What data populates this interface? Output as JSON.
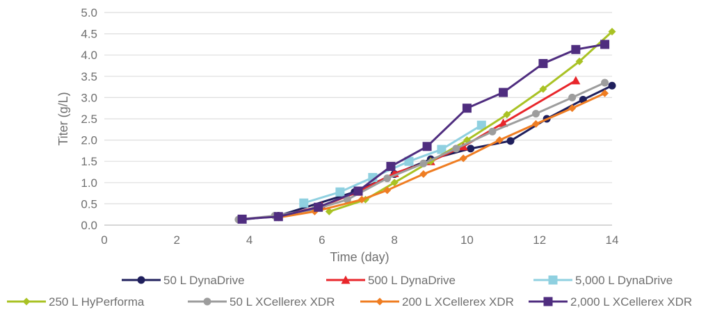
{
  "chart_data": {
    "type": "line",
    "title": "",
    "xlabel": "Time (day)",
    "ylabel": "Titer (g/L)",
    "xlim": [
      0,
      14
    ],
    "ylim": [
      0,
      5.0
    ],
    "xticks": [
      "0",
      "2",
      "4",
      "6",
      "8",
      "10",
      "12",
      "14"
    ],
    "yticks": [
      "0.0",
      "0.5",
      "1.0",
      "1.5",
      "2.0",
      "2.5",
      "3.0",
      "3.5",
      "4.0",
      "4.5",
      "5.0"
    ],
    "grid": "horizontal",
    "legend_placement": "bottom",
    "series": [
      {
        "name": "50 L DynaDrive",
        "color": "#1f1f5c",
        "marker": "circle",
        "points": [
          [
            3.8,
            0.13
          ],
          [
            4.8,
            0.22
          ],
          [
            6.9,
            0.78
          ],
          [
            8.0,
            1.2
          ],
          [
            9.0,
            1.55
          ],
          [
            10.1,
            1.8
          ],
          [
            11.2,
            1.98
          ],
          [
            12.2,
            2.5
          ],
          [
            13.2,
            2.95
          ],
          [
            14.0,
            3.28
          ]
        ]
      },
      {
        "name": "500 L DynaDrive",
        "color": "#e8262b",
        "marker": "triangle",
        "points": [
          [
            4.8,
            0.2
          ],
          [
            6.0,
            0.45
          ],
          [
            7.0,
            0.78
          ],
          [
            8.0,
            1.22
          ],
          [
            9.0,
            1.5
          ],
          [
            9.9,
            1.85
          ],
          [
            11.0,
            2.4
          ],
          [
            13.0,
            3.4
          ]
        ]
      },
      {
        "name": "5,000 L DynaDrive",
        "color": "#8fd0e0",
        "marker": "square",
        "points": [
          [
            5.5,
            0.52
          ],
          [
            6.5,
            0.78
          ],
          [
            7.4,
            1.12
          ],
          [
            8.4,
            1.5
          ],
          [
            9.3,
            1.78
          ],
          [
            10.4,
            2.35
          ]
        ]
      },
      {
        "name": "250 L HyPerforma",
        "color": "#a9c224",
        "marker": "diamond",
        "points": [
          [
            6.2,
            0.32
          ],
          [
            7.2,
            0.6
          ],
          [
            8.0,
            1.0
          ],
          [
            9.0,
            1.5
          ],
          [
            10.0,
            2.0
          ],
          [
            11.1,
            2.6
          ],
          [
            12.1,
            3.2
          ],
          [
            13.1,
            3.85
          ],
          [
            14.0,
            4.55
          ]
        ]
      },
      {
        "name": "50 L XCellerex XDR",
        "color": "#9d9d9d",
        "marker": "circle",
        "points": [
          [
            3.7,
            0.13
          ],
          [
            4.7,
            0.22
          ],
          [
            5.8,
            0.37
          ],
          [
            6.7,
            0.6
          ],
          [
            7.8,
            1.1
          ],
          [
            8.8,
            1.45
          ],
          [
            9.7,
            1.8
          ],
          [
            10.7,
            2.2
          ],
          [
            11.9,
            2.62
          ],
          [
            12.9,
            3.0
          ],
          [
            13.8,
            3.35
          ]
        ]
      },
      {
        "name": "200 L XCellerex XDR",
        "color": "#ef7d22",
        "marker": "diamond",
        "points": [
          [
            4.8,
            0.18
          ],
          [
            5.8,
            0.32
          ],
          [
            7.1,
            0.6
          ],
          [
            7.8,
            0.82
          ],
          [
            8.8,
            1.2
          ],
          [
            9.9,
            1.57
          ],
          [
            10.9,
            2.0
          ],
          [
            11.9,
            2.38
          ],
          [
            12.9,
            2.75
          ],
          [
            13.8,
            3.1
          ]
        ]
      },
      {
        "name": "2,000 L XCellerex XDR",
        "color": "#4f2d7f",
        "marker": "square",
        "points": [
          [
            3.8,
            0.14
          ],
          [
            4.8,
            0.2
          ],
          [
            5.9,
            0.42
          ],
          [
            7.0,
            0.8
          ],
          [
            7.9,
            1.38
          ],
          [
            8.9,
            1.85
          ],
          [
            10.0,
            2.75
          ],
          [
            11.0,
            3.12
          ],
          [
            12.1,
            3.8
          ],
          [
            13.0,
            4.13
          ],
          [
            13.8,
            4.25
          ]
        ]
      }
    ]
  }
}
